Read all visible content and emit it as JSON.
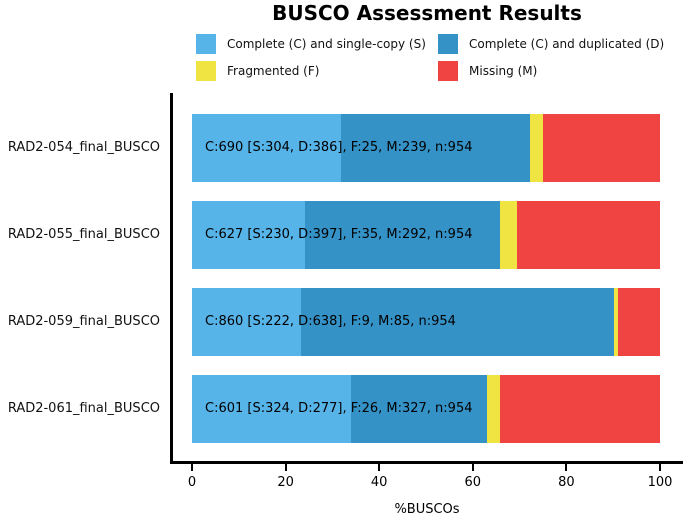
{
  "title": "BUSCO Assessment Results",
  "legend": {
    "items": [
      {
        "name": "complete-single-copy",
        "label": "Complete (C) and single-copy (S)",
        "color": "#56B4E9"
      },
      {
        "name": "complete-duplicated",
        "label": "Complete (C) and duplicated (D)",
        "color": "#3492C7"
      },
      {
        "name": "fragmented",
        "label": "Fragmented (F)",
        "color": "#F0E442"
      },
      {
        "name": "missing",
        "label": "Missing (M)",
        "color": "#F04442"
      }
    ]
  },
  "chart_data": {
    "type": "bar",
    "orientation": "horizontal",
    "stacked": true,
    "title": "BUSCO Assessment Results",
    "xlabel": "%BUSCOs",
    "ylabel": "",
    "xlim": [
      0,
      100
    ],
    "xticks": [
      0,
      20,
      40,
      60,
      80,
      100
    ],
    "grid": false,
    "legend_position": "top",
    "n_total": 954,
    "categories": [
      "RAD2-054_final_BUSCO",
      "RAD2-055_final_BUSCO",
      "RAD2-059_final_BUSCO",
      "RAD2-061_final_BUSCO"
    ],
    "series": [
      {
        "name": "Complete (C) and single-copy (S)",
        "color": "#56B4E9",
        "values": [
          304,
          230,
          222,
          324
        ]
      },
      {
        "name": "Complete (C) and duplicated (D)",
        "color": "#3492C7",
        "values": [
          386,
          397,
          638,
          277
        ]
      },
      {
        "name": "Fragmented (F)",
        "color": "#F0E442",
        "values": [
          25,
          35,
          9,
          26
        ]
      },
      {
        "name": "Missing (M)",
        "color": "#F04442",
        "values": [
          239,
          292,
          85,
          327
        ]
      }
    ],
    "bar_labels": [
      "C:690 [S:304, D:386], F:25, M:239, n:954",
      "C:627 [S:230, D:397], F:35, M:292, n:954",
      "C:860 [S:222, D:638], F:9, M:85, n:954",
      "C:601 [S:324, D:277], F:26, M:327, n:954"
    ]
  }
}
